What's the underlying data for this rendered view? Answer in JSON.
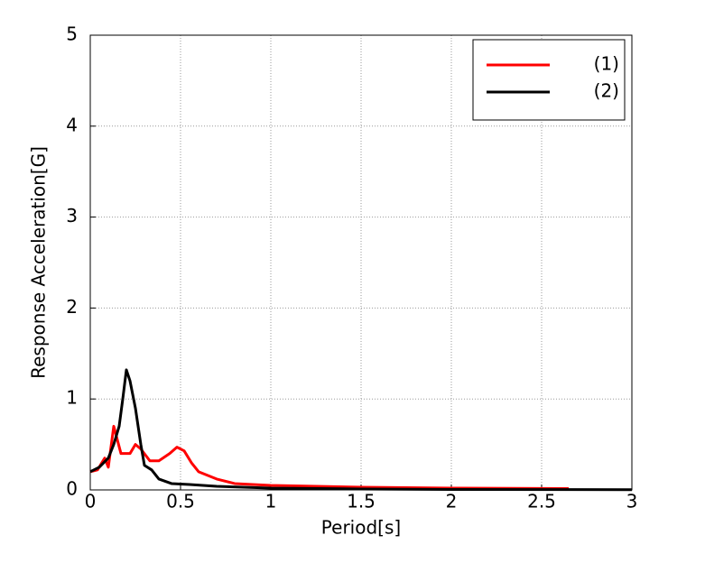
{
  "chart_data": {
    "type": "line",
    "xlabel": "Period[s]",
    "ylabel": "Response Acceleration[G]",
    "xlim": [
      0,
      3
    ],
    "ylim": [
      0,
      5
    ],
    "xticks": [
      0,
      0.5,
      1,
      1.5,
      2,
      2.5,
      3
    ],
    "yticks": [
      0,
      1,
      2,
      3,
      4,
      5
    ],
    "grid": true,
    "legend": "upper right",
    "series": [
      {
        "name": "(1)",
        "color": "#ff0000",
        "x": [
          0,
          0.04,
          0.08,
          0.1,
          0.13,
          0.17,
          0.22,
          0.25,
          0.28,
          0.33,
          0.38,
          0.44,
          0.48,
          0.52,
          0.56,
          0.6,
          0.7,
          0.8,
          1.0,
          1.5,
          2.0,
          2.65
        ],
        "values": [
          0.2,
          0.22,
          0.35,
          0.25,
          0.7,
          0.4,
          0.4,
          0.5,
          0.45,
          0.32,
          0.32,
          0.4,
          0.47,
          0.43,
          0.3,
          0.2,
          0.12,
          0.07,
          0.05,
          0.03,
          0.02,
          0.015
        ]
      },
      {
        "name": "(2)",
        "color": "#000000",
        "x": [
          0,
          0.05,
          0.1,
          0.13,
          0.16,
          0.18,
          0.2,
          0.22,
          0.25,
          0.28,
          0.3,
          0.34,
          0.38,
          0.45,
          0.55,
          0.7,
          1.0,
          1.5,
          2.0,
          3.0
        ],
        "values": [
          0.2,
          0.25,
          0.35,
          0.5,
          0.7,
          1.0,
          1.32,
          1.2,
          0.9,
          0.5,
          0.27,
          0.22,
          0.12,
          0.07,
          0.06,
          0.04,
          0.02,
          0.01,
          0.005,
          0.003
        ]
      }
    ]
  }
}
